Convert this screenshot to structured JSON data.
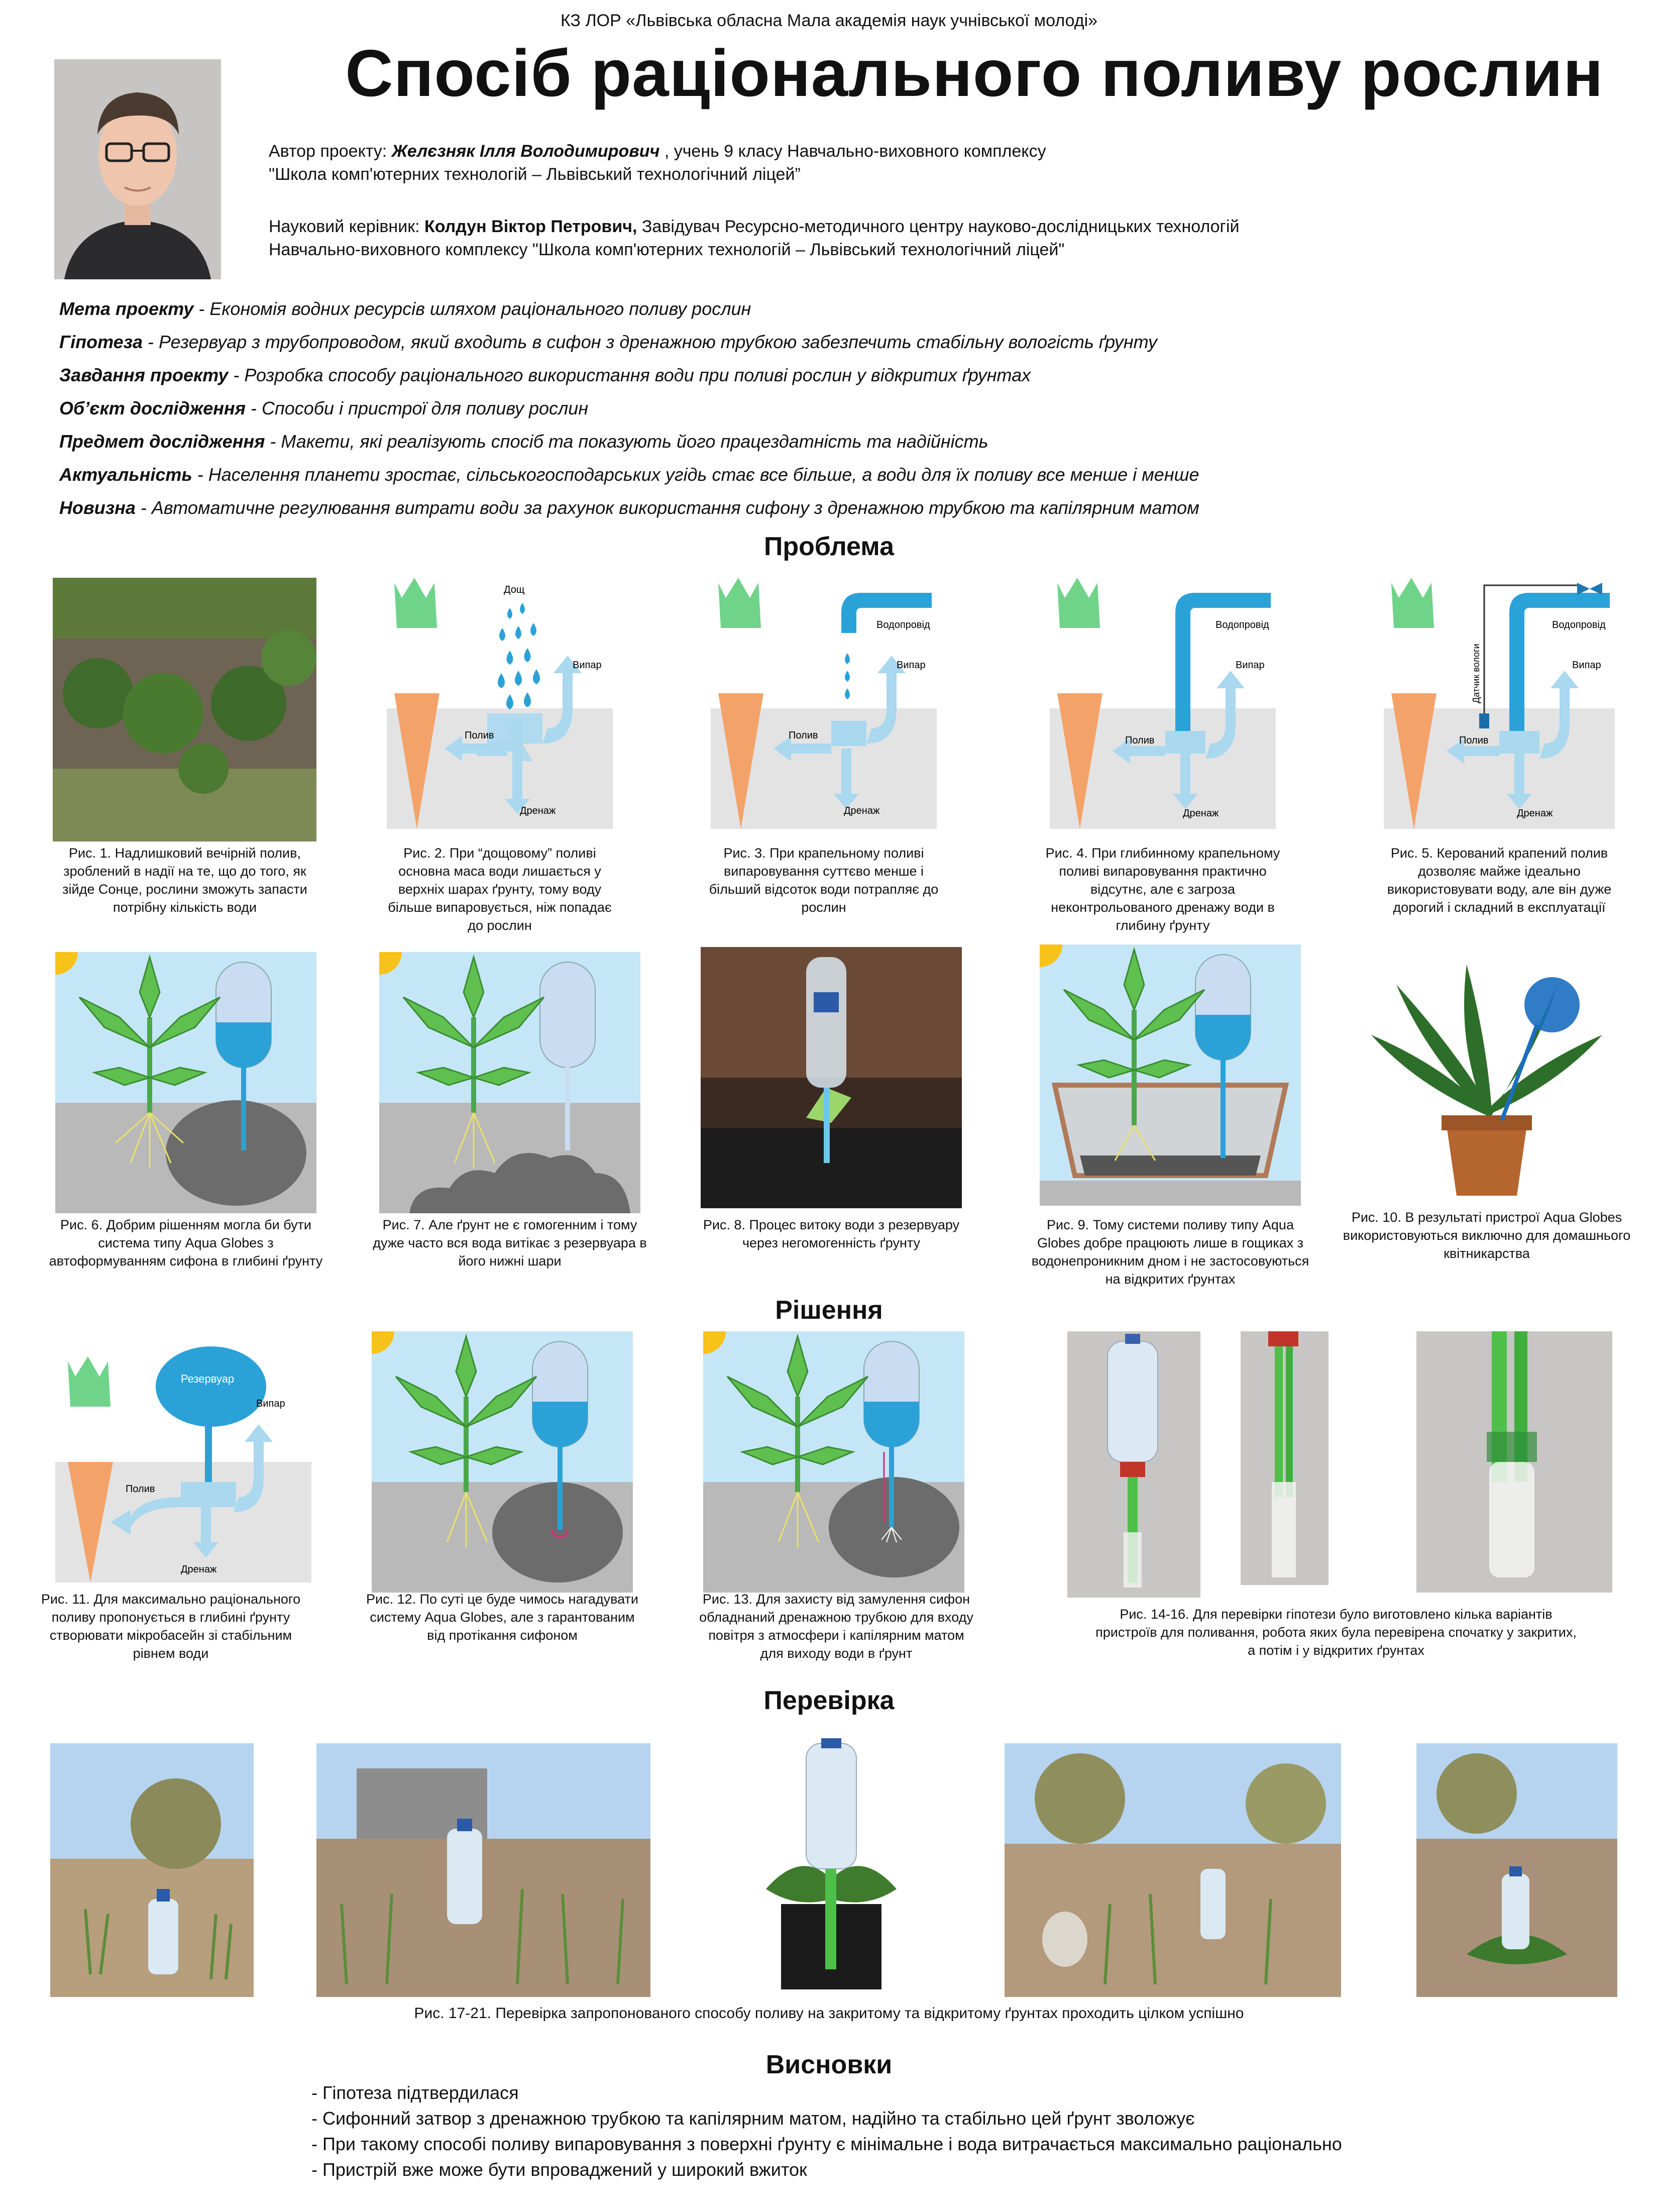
{
  "header": {
    "organization": "КЗ ЛОР «Львівська обласна Мала академія наук учнівської молоді»",
    "title": "Спосіб раціонального поливу рослин",
    "author_prefix": "Автор проекту:",
    "author_name": "Желєзняк Ілля Володимирович",
    "author_rest": ", учень 9 класу Навчально-виховного комплексу",
    "author_line2": "\"Школа комп'ютерних технологій – Львівський технологічний ліцей”",
    "supervisor_prefix": "Науковий керівник:",
    "supervisor_name": "Колдун Віктор Петрович,",
    "supervisor_rest": "Завідувач Ресурсно-методичного центру науково-дослідницьких технологій",
    "supervisor_line2": "Навчально-виховного комплексу \"Школа комп'ютерних технологій – Львівський технологічний ліцей\""
  },
  "goals": [
    {
      "label": "Мета проекту",
      "text": " - Економія водних ресурсів шляхом раціонального поливу рослин"
    },
    {
      "label": "Гіпотеза",
      "text": " - Резервуар з трубопроводом, який входить в сифон з дренажною трубкою забезпечить стабільну вологість ґрунту"
    },
    {
      "label": "Завдання проекту",
      "text": " - Розробка способу раціонального використання води при поливі рослин у відкритих ґрунтах"
    },
    {
      "label": "Об’єкт дослідження",
      "text": " - Способи і пристрої для поливу рослин"
    },
    {
      "label": "Предмет дослідження",
      "text": " - Макети, які реалізують спосіб та показують його працездатність та надійність"
    },
    {
      "label": "Актуальність",
      "text": " - Населення планети зростає, сільськогосподарських угідь стає все більше, а води для їх поливу все менше і менше"
    },
    {
      "label": "Новизна",
      "text": " - Автоматичне регулювання витрати води за рахунок використання сифону з дренажною трубкою та капілярним матом"
    }
  ],
  "sections": {
    "problem": "Проблема",
    "solution": "Рішення",
    "check": "Перевірка",
    "conclusions": "Висновки"
  },
  "diagram_labels": {
    "rain": "Дощ",
    "water_pipe": "Водопровід",
    "evaporation": "Випар",
    "watering": "Полив",
    "drainage": "Дренаж",
    "moisture_sensor": "Датчик вологи",
    "reservoir": "Резервуар"
  },
  "captions": {
    "fig1": "Рис. 1. Надлишковий вечірній полив, зроблений в надії на те, що до того, як зійде Сонце, рослини зможуть запасти потрібну кількість води",
    "fig2": "Рис. 2. При “дощовому” поливі основна маса води лишається у верхніх шарах ґрунту, тому воду більше випаровується, ніж попадає до рослин",
    "fig3": "Рис. 3. При крапельному поливі випаровування суттєво менше і більший відсоток води потрапляє до рослин",
    "fig4": "Рис. 4. При глибинному крапельному поливі випаровування практично відсутнє, але є загроза неконтрольованого дренажу води в глибину ґрунту",
    "fig5": "Рис. 5. Керований крапений полив дозволяє майже ідеально використовувати воду, але він дуже дорогий і складний в експлуатації",
    "fig6": "Рис. 6. Добрим рішенням могла би бути система типу Aqua Globes з автоформуванням сифона в глибині ґрунту",
    "fig7": "Рис. 7. Але ґрунт не є гомогенним і тому дуже часто вся вода витікає з резервуара в його нижні шари",
    "fig8": "Рис. 8. Процес витоку води з резервуару через негомогенність ґрунту",
    "fig9": "Рис. 9. Тому системи поливу типу Aqua Globes добре працюють лише в гощиках з водонепроникним дном і не застосовуються на відкритих ґрунтах",
    "fig10": "Рис. 10. В результаті пристрої Aqua Globes використовуються виключно для домашнього квітникарства",
    "fig11": "Рис. 11. Для максимально раціонального поливу пропонується в глибині ґрунту створювати мікробасейн зі стабільним рівнем води",
    "fig12": "Рис. 12. По суті це буде чимось нагадувати систему Aqua Globes, але з гарантованим від протікання сифоном",
    "fig13": "Рис. 13. Для захисту від замулення сифон обладнаний дренажною трубкою для входу повітря з атмосфери і капілярним матом для виходу води в ґрунт",
    "fig14_16": "Рис. 14-16. Для перевірки гіпотези було виготовлено кілька варіантів пристроїв для поливання, робота яких була перевірена спочатку у закритих, а потім і у відкритих ґрунтах",
    "fig17_21": "Рис. 17-21. Перевірка запропонованого способу поливу на закритому та відкритому ґрунтах проходить цілком успішно"
  },
  "conclusions": [
    "- Гіпотеза підтвердилася",
    "- Сифонний затвор з дренажною трубкою та капілярним матом, надійно та стабільно цей ґрунт зволожує",
    "- При такому способі поливу випаровування з поверхні ґрунту є мінімальне і вода витрачається максимально раціонально",
    "- Пристрій вже може бути впроваджений у широкий вжиток"
  ],
  "colors": {
    "water": "#2aa2d8",
    "light_water": "#a9d8ef",
    "soil": "#e3e3e3",
    "carrot": "#f3a36a",
    "leaf": "#6fd48a",
    "sky": "#c5e6f6",
    "sun": "#f7c21a"
  }
}
